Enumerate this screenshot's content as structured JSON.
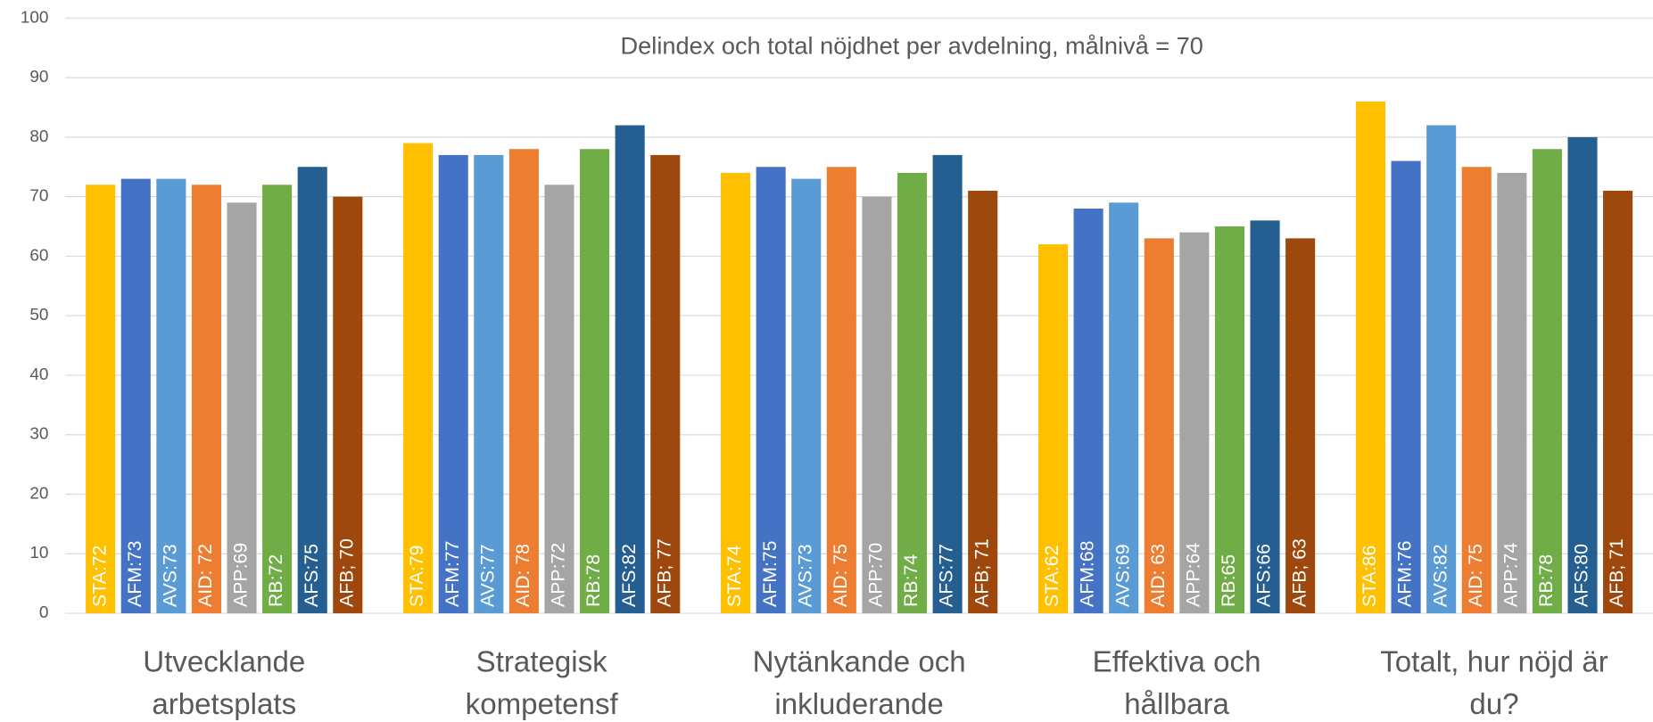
{
  "chart_data": {
    "type": "bar",
    "title": "Delindex och total nöjdhet per avdelning, målnivå = 70",
    "categories": [
      "Utvecklande arbetsplats",
      "Strategisk kompetensf",
      "Nytänkande och inkluderande",
      "Effektiva och hållbara",
      "Totalt, hur nöjd är du?"
    ],
    "series": [
      {
        "color": "#ffc000",
        "values": [
          72,
          79,
          74,
          62,
          86
        ],
        "value_labels": [
          "STA:72",
          "STA:79",
          "STA:74",
          "STA:62",
          "STA:86"
        ]
      },
      {
        "color": "#4472c4",
        "values": [
          73,
          77,
          75,
          68,
          76
        ],
        "value_labels": [
          "AFM:73",
          "AFM:77",
          "AFM:75",
          "AFM:68",
          "AFM:76"
        ]
      },
      {
        "color": "#5b9bd5",
        "values": [
          73,
          77,
          73,
          69,
          82
        ],
        "value_labels": [
          "AVS:73",
          "AVS:77",
          "AVS:73",
          "AVS:69",
          "AVS:82"
        ]
      },
      {
        "color": "#ed7d31",
        "values": [
          72,
          78,
          75,
          63,
          75
        ],
        "value_labels": [
          "AID: 72",
          "AID: 78",
          "AID: 75",
          "AID: 63",
          "AID: 75"
        ]
      },
      {
        "color": "#a5a5a5",
        "values": [
          69,
          72,
          70,
          64,
          74
        ],
        "value_labels": [
          "APP:69",
          "APP:72",
          "APP:70",
          "APP:64",
          "APP:74"
        ]
      },
      {
        "color": "#70ad47",
        "values": [
          72,
          78,
          74,
          65,
          78
        ],
        "value_labels": [
          "RB:72",
          "RB:78",
          "RB:74",
          "RB:65",
          "RB:78"
        ]
      },
      {
        "color": "#255e91",
        "values": [
          75,
          82,
          77,
          66,
          80
        ],
        "value_labels": [
          "AFS:75",
          "AFS:82",
          "AFS:77",
          "AFS:66",
          "AFS:80"
        ]
      },
      {
        "color": "#9e480e",
        "values": [
          70,
          77,
          71,
          63,
          71
        ],
        "value_labels": [
          "AFB; 70",
          "AFB; 77",
          "AFB; 71",
          "AFB; 63",
          "AFB; 71"
        ]
      }
    ],
    "ylim": [
      0,
      100
    ],
    "yticks": [
      0,
      10,
      20,
      30,
      40,
      50,
      60,
      70,
      80,
      90,
      100
    ],
    "grid": true
  }
}
